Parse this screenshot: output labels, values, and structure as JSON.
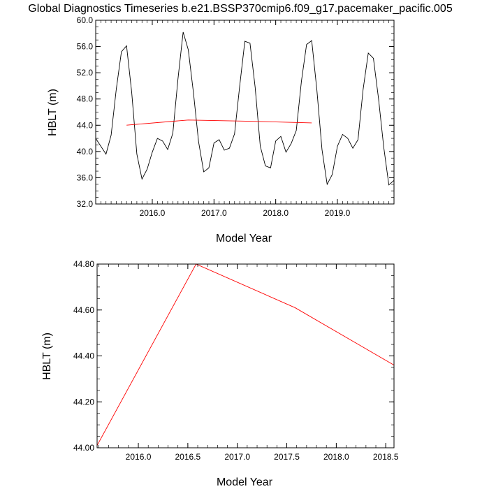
{
  "page": {
    "title": "Global Diagnostics Timeseries b.e21.BSSP370cmip6.f09_g17.pacemaker_pacific.005"
  },
  "chart_data": [
    {
      "type": "line",
      "xlabel": "Model Year",
      "ylabel": "HBLT (m)",
      "xlim": [
        2015.0833,
        2019.9167
      ],
      "ylim": [
        32.0,
        60.0
      ],
      "xticks": [
        2016.0,
        2017.0,
        2018.0,
        2019.0
      ],
      "xtick_labels": [
        "2016.0",
        "2017.0",
        "2018.0",
        "2019.0"
      ],
      "yticks": [
        32.0,
        36.0,
        40.0,
        44.0,
        48.0,
        52.0,
        56.0,
        60.0
      ],
      "ytick_labels": [
        "32.0",
        "36.0",
        "40.0",
        "44.0",
        "48.0",
        "52.0",
        "56.0",
        "60.0"
      ],
      "series": [
        {
          "color": "#000000",
          "x": [
            2015.0833,
            2015.1667,
            2015.25,
            2015.3333,
            2015.4167,
            2015.5,
            2015.5833,
            2015.6667,
            2015.75,
            2015.8333,
            2015.9167,
            2016.0,
            2016.0833,
            2016.1667,
            2016.25,
            2016.3333,
            2016.4167,
            2016.5,
            2016.5833,
            2016.6667,
            2016.75,
            2016.8333,
            2016.9167,
            2017.0,
            2017.0833,
            2017.1667,
            2017.25,
            2017.3333,
            2017.4167,
            2017.5,
            2017.5833,
            2017.6667,
            2017.75,
            2017.8333,
            2017.9167,
            2018.0,
            2018.0833,
            2018.1667,
            2018.25,
            2018.3333,
            2018.4167,
            2018.5,
            2018.5833,
            2018.6667,
            2018.75,
            2018.8333,
            2018.9167,
            2019.0,
            2019.0833,
            2019.1667,
            2019.25,
            2019.3333,
            2019.4167,
            2019.5,
            2019.5833,
            2019.6667,
            2019.75,
            2019.8333,
            2019.9167
          ],
          "y": [
            42.0,
            40.8,
            39.6,
            42.5,
            49.5,
            55.2,
            56.1,
            49.0,
            39.6,
            35.8,
            37.3,
            39.9,
            42.0,
            41.6,
            40.3,
            42.8,
            51.1,
            58.2,
            55.5,
            49.0,
            41.5,
            36.9,
            37.5,
            41.3,
            41.8,
            40.2,
            40.5,
            42.7,
            50.0,
            56.8,
            56.5,
            49.8,
            40.8,
            37.8,
            37.5,
            41.6,
            42.3,
            39.9,
            41.2,
            43.2,
            50.7,
            56.3,
            56.9,
            49.4,
            40.3,
            35.0,
            36.5,
            40.8,
            42.6,
            42.0,
            40.5,
            41.8,
            49.5,
            55.0,
            54.2,
            48.0,
            40.7,
            34.9,
            35.6
          ]
        },
        {
          "color": "#ff0000",
          "x": [
            2015.5833,
            2016.5833,
            2017.5833,
            2018.5833
          ],
          "y": [
            44.01,
            44.8,
            44.61,
            44.36
          ]
        }
      ]
    },
    {
      "type": "line",
      "xlabel": "Model Year",
      "ylabel": "HBLT (m)",
      "xlim": [
        2015.5833,
        2018.5833
      ],
      "ylim": [
        44.0,
        44.8
      ],
      "xticks": [
        2016.0,
        2016.5,
        2017.0,
        2017.5,
        2018.0,
        2018.5
      ],
      "xtick_labels": [
        "2016.0",
        "2016.5",
        "2017.0",
        "2017.5",
        "2018.0",
        "2018.5"
      ],
      "yticks": [
        44.0,
        44.2,
        44.4,
        44.6,
        44.8
      ],
      "ytick_labels": [
        "44.00",
        "44.20",
        "44.40",
        "44.60",
        "44.80"
      ],
      "series": [
        {
          "color": "#ff0000",
          "x": [
            2015.5833,
            2016.5833,
            2017.5833,
            2018.5833
          ],
          "y": [
            44.01,
            44.8,
            44.61,
            44.36
          ]
        }
      ]
    }
  ]
}
